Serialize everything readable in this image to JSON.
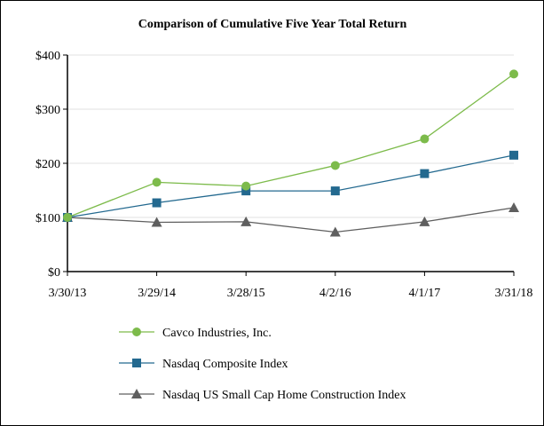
{
  "chart_data": {
    "type": "line",
    "title": "Comparison of Cumulative Five Year Total Return",
    "categories": [
      "3/30/13",
      "3/29/14",
      "3/28/15",
      "4/2/16",
      "4/1/17",
      "3/31/18"
    ],
    "yticks": [
      "$0",
      "$100",
      "$200",
      "$300",
      "$400"
    ],
    "ylim": [
      0,
      400
    ],
    "grid": true,
    "legend": "bottom",
    "series": [
      {
        "name": "Cavco Industries, Inc.",
        "marker": "circle",
        "color": "#7dbb4b",
        "values": [
          100,
          165,
          158,
          196,
          245,
          365
        ]
      },
      {
        "name": "Nasdaq Composite Index",
        "marker": "square",
        "color": "#23698f",
        "values": [
          100,
          127,
          149,
          149,
          181,
          215
        ]
      },
      {
        "name": "Nasdaq US Small Cap Home Construction Index",
        "marker": "triangle",
        "color": "#5f5f5f",
        "values": [
          100,
          91,
          92,
          73,
          92,
          118
        ]
      }
    ]
  }
}
